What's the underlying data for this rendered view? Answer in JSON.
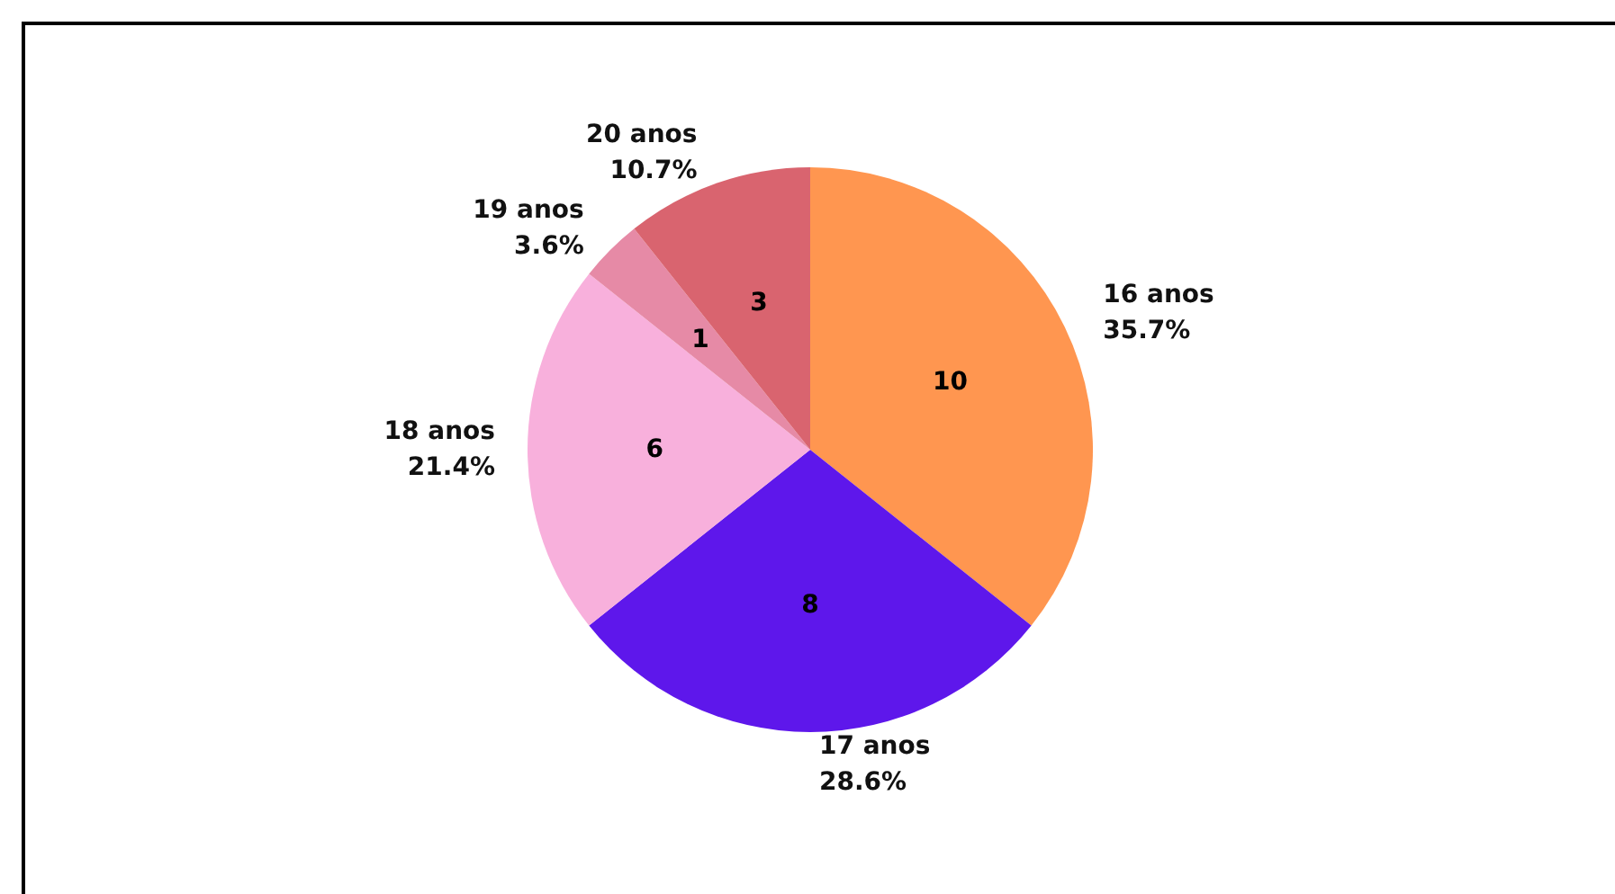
{
  "chart_data": {
    "type": "pie",
    "categories": [
      "16 anos",
      "17 anos",
      "18 anos",
      "19 anos",
      "20 anos"
    ],
    "values": [
      35.7,
      28.6,
      21.4,
      3.6,
      10.7
    ],
    "colors": [
      "#ff9650",
      "#5e17eb",
      "#f8b0dc",
      "#e68aa6",
      "#d9646f"
    ],
    "value_labels": [
      "35.7%",
      "28.6%",
      "21.4%",
      "3.6%",
      "10.7%"
    ],
    "annotations": [
      "10",
      "8",
      "6",
      "1",
      "3"
    ],
    "legend": false
  }
}
